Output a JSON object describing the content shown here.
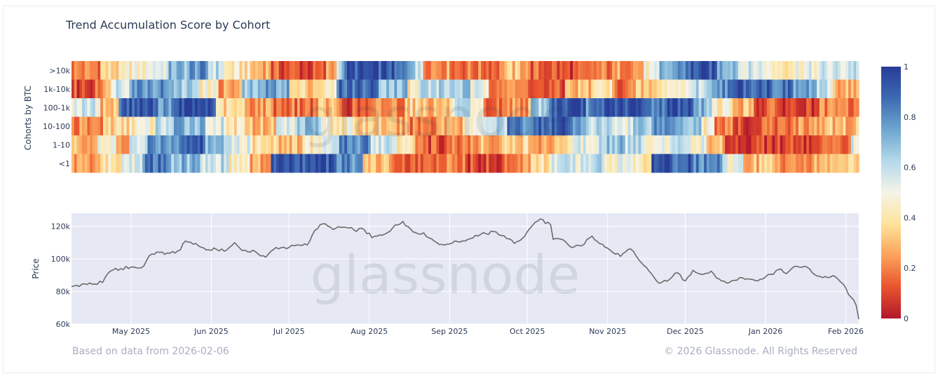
{
  "chart_data": [
    {
      "type": "heatmap",
      "title": "Trend Accumulation Score by Cohort",
      "ylabel": "Cohorts by BTC",
      "rows": [
        ">10k",
        "1k-10k",
        "100-1k",
        "10-100",
        "1-10",
        "<1"
      ],
      "colorbar": {
        "range": [
          0,
          1
        ],
        "ticks": [
          "1",
          "0.8",
          "0.6",
          "0.4",
          "0.2",
          "0"
        ]
      },
      "colorscale": [
        "#b2182b",
        "#e9542d",
        "#fca25a",
        "#fee39a",
        "#f5f4e9",
        "#b4d9ea",
        "#6ea6d0",
        "#3d6ab2",
        "#283c98"
      ],
      "start_date": "2025-04-08",
      "end_date": "2026-02-06",
      "segments": {
        ">10k": [
          [
            0.2,
            12
          ],
          [
            0.35,
            10
          ],
          [
            0.45,
            8
          ],
          [
            0.55,
            8
          ],
          [
            0.7,
            8
          ],
          [
            0.78,
            7
          ],
          [
            0.6,
            6
          ],
          [
            0.4,
            10
          ],
          [
            0.3,
            8
          ],
          [
            0.12,
            12
          ],
          [
            0.1,
            10
          ],
          [
            0.25,
            4
          ],
          [
            0.65,
            3
          ],
          [
            0.92,
            20
          ],
          [
            0.8,
            8
          ],
          [
            0.55,
            3
          ],
          [
            0.25,
            12
          ],
          [
            0.18,
            20
          ],
          [
            0.3,
            10
          ],
          [
            0.14,
            12
          ],
          [
            0.1,
            14
          ],
          [
            0.18,
            10
          ],
          [
            0.25,
            10
          ],
          [
            0.45,
            6
          ],
          [
            0.7,
            6
          ],
          [
            0.82,
            6
          ],
          [
            0.92,
            10
          ],
          [
            0.75,
            8
          ],
          [
            0.55,
            12
          ],
          [
            0.45,
            12
          ],
          [
            0.5,
            10
          ],
          [
            0.55,
            10
          ],
          [
            0.62,
            6
          ],
          [
            0.72,
            4
          ]
        ],
        "1k-10k": [
          [
            0.1,
            8
          ],
          [
            0.25,
            5
          ],
          [
            0.6,
            6
          ],
          [
            0.8,
            14
          ],
          [
            0.65,
            10
          ],
          [
            0.45,
            6
          ],
          [
            0.25,
            8
          ],
          [
            0.65,
            6
          ],
          [
            0.75,
            10
          ],
          [
            0.35,
            10
          ],
          [
            0.4,
            6
          ],
          [
            0.88,
            14
          ],
          [
            0.7,
            10
          ],
          [
            0.4,
            4
          ],
          [
            0.62,
            12
          ],
          [
            0.65,
            6
          ],
          [
            0.5,
            6
          ],
          [
            0.25,
            8
          ],
          [
            0.18,
            8
          ],
          [
            0.1,
            10
          ],
          [
            0.3,
            10
          ],
          [
            0.4,
            6
          ],
          [
            0.18,
            8
          ],
          [
            0.3,
            8
          ],
          [
            0.45,
            10
          ],
          [
            0.6,
            8
          ],
          [
            0.82,
            8
          ],
          [
            0.92,
            12
          ],
          [
            0.85,
            8
          ],
          [
            0.75,
            8
          ],
          [
            0.55,
            5
          ],
          [
            0.3,
            8
          ],
          [
            0.25,
            4
          ]
        ],
        "100-1k": [
          [
            0.55,
            10
          ],
          [
            0.3,
            6
          ],
          [
            0.92,
            12
          ],
          [
            0.8,
            8
          ],
          [
            0.95,
            12
          ],
          [
            0.35,
            10
          ],
          [
            0.25,
            10
          ],
          [
            0.18,
            14
          ],
          [
            0.28,
            8
          ],
          [
            0.12,
            12
          ],
          [
            0.22,
            10
          ],
          [
            0.35,
            8
          ],
          [
            0.3,
            8
          ],
          [
            0.55,
            6
          ],
          [
            0.4,
            4
          ],
          [
            0.15,
            8
          ],
          [
            0.25,
            8
          ],
          [
            0.65,
            6
          ],
          [
            0.92,
            12
          ],
          [
            0.8,
            6
          ],
          [
            0.95,
            12
          ],
          [
            0.85,
            8
          ],
          [
            0.95,
            10
          ],
          [
            0.7,
            6
          ],
          [
            0.45,
            6
          ],
          [
            0.3,
            8
          ],
          [
            0.12,
            10
          ],
          [
            0.08,
            12
          ],
          [
            0.18,
            12
          ],
          [
            0.15,
            4
          ]
        ],
        "10-100": [
          [
            0.2,
            10
          ],
          [
            0.35,
            8
          ],
          [
            0.45,
            8
          ],
          [
            0.6,
            6
          ],
          [
            0.72,
            10
          ],
          [
            0.55,
            6
          ],
          [
            0.4,
            8
          ],
          [
            0.3,
            8
          ],
          [
            0.55,
            6
          ],
          [
            0.7,
            8
          ],
          [
            0.45,
            10
          ],
          [
            0.35,
            10
          ],
          [
            0.25,
            8
          ],
          [
            0.2,
            8
          ],
          [
            0.3,
            8
          ],
          [
            0.45,
            6
          ],
          [
            0.6,
            8
          ],
          [
            0.82,
            10
          ],
          [
            0.92,
            10
          ],
          [
            0.75,
            6
          ],
          [
            0.6,
            8
          ],
          [
            0.55,
            6
          ],
          [
            0.68,
            6
          ],
          [
            0.8,
            10
          ],
          [
            0.7,
            6
          ],
          [
            0.45,
            4
          ],
          [
            0.2,
            6
          ],
          [
            0.08,
            8
          ],
          [
            0.15,
            10
          ],
          [
            0.25,
            12
          ],
          [
            0.3,
            12
          ],
          [
            0.92,
            2
          ]
        ],
        "1-10": [
          [
            0.3,
            8
          ],
          [
            0.45,
            6
          ],
          [
            0.25,
            4
          ],
          [
            0.55,
            6
          ],
          [
            0.8,
            10
          ],
          [
            0.92,
            8
          ],
          [
            0.7,
            8
          ],
          [
            0.55,
            6
          ],
          [
            0.4,
            8
          ],
          [
            0.3,
            8
          ],
          [
            0.45,
            6
          ],
          [
            0.55,
            6
          ],
          [
            0.82,
            10
          ],
          [
            0.6,
            8
          ],
          [
            0.45,
            6
          ],
          [
            0.12,
            10
          ],
          [
            0.2,
            10
          ],
          [
            0.3,
            8
          ],
          [
            0.35,
            10
          ],
          [
            0.25,
            6
          ],
          [
            0.4,
            6
          ],
          [
            0.55,
            8
          ],
          [
            0.7,
            8
          ],
          [
            0.6,
            6
          ],
          [
            0.5,
            8
          ],
          [
            0.65,
            6
          ],
          [
            0.5,
            6
          ],
          [
            0.3,
            6
          ],
          [
            0.1,
            14
          ],
          [
            0.08,
            14
          ],
          [
            0.12,
            12
          ],
          [
            0.55,
            4
          ]
        ],
        "<1": [
          [
            0.25,
            8
          ],
          [
            0.4,
            6
          ],
          [
            0.55,
            6
          ],
          [
            0.85,
            8
          ],
          [
            0.7,
            8
          ],
          [
            0.6,
            8
          ],
          [
            0.45,
            6
          ],
          [
            0.25,
            6
          ],
          [
            0.92,
            18
          ],
          [
            0.8,
            8
          ],
          [
            0.3,
            8
          ],
          [
            0.12,
            12
          ],
          [
            0.18,
            10
          ],
          [
            0.1,
            10
          ],
          [
            0.2,
            8
          ],
          [
            0.4,
            6
          ],
          [
            0.55,
            8
          ],
          [
            0.62,
            6
          ],
          [
            0.5,
            8
          ],
          [
            0.45,
            6
          ],
          [
            0.9,
            12
          ],
          [
            0.82,
            8
          ],
          [
            0.5,
            6
          ],
          [
            0.3,
            10
          ],
          [
            0.25,
            12
          ],
          [
            0.32,
            12
          ],
          [
            0.45,
            4
          ]
        ]
      },
      "watermark": "glassnode"
    },
    {
      "type": "line",
      "ylabel": "Price",
      "ylim": [
        60000,
        128000
      ],
      "yticks": [
        60000,
        80000,
        100000,
        120000
      ],
      "ytick_labels": [
        "60k",
        "80k",
        "100k",
        "120k"
      ],
      "xticks": [
        "2025-05-01",
        "2025-06-01",
        "2025-07-01",
        "2025-08-01",
        "2025-09-01",
        "2025-10-01",
        "2025-11-01",
        "2025-12-01",
        "2026-01-01",
        "2026-02-01"
      ],
      "xtick_labels": [
        "May 2025",
        "Jun 2025",
        "Jul 2025",
        "Aug 2025",
        "Sep 2025",
        "Oct 2025",
        "Nov 2025",
        "Dec 2025",
        "Jan 2026",
        "Feb 2026"
      ],
      "series": [
        {
          "color": "#6b6b6b",
          "points": [
            [
              "2025-04-08",
              83000
            ],
            [
              "2025-04-12",
              84500
            ],
            [
              "2025-04-16",
              84500
            ],
            [
              "2025-04-20",
              85500
            ],
            [
              "2025-04-23",
              92500
            ],
            [
              "2025-04-27",
              94000
            ],
            [
              "2025-05-01",
              95000
            ],
            [
              "2025-05-05",
              94500
            ],
            [
              "2025-05-09",
              103000
            ],
            [
              "2025-05-12",
              104000
            ],
            [
              "2025-05-16",
              103500
            ],
            [
              "2025-05-20",
              105500
            ],
            [
              "2025-05-22",
              111000
            ],
            [
              "2025-05-26",
              109500
            ],
            [
              "2025-05-30",
              105500
            ],
            [
              "2025-06-03",
              105800
            ],
            [
              "2025-06-07",
              105500
            ],
            [
              "2025-06-10",
              110000
            ],
            [
              "2025-06-13",
              105000
            ],
            [
              "2025-06-18",
              104500
            ],
            [
              "2025-06-22",
              101000
            ],
            [
              "2025-06-26",
              107000
            ],
            [
              "2025-07-01",
              107000
            ],
            [
              "2025-07-05",
              108500
            ],
            [
              "2025-07-08",
              108500
            ],
            [
              "2025-07-11",
              117500
            ],
            [
              "2025-07-14",
              121500
            ],
            [
              "2025-07-18",
              118000
            ],
            [
              "2025-07-22",
              119500
            ],
            [
              "2025-07-26",
              117800
            ],
            [
              "2025-07-30",
              118000
            ],
            [
              "2025-08-02",
              113000
            ],
            [
              "2025-08-06",
              114500
            ],
            [
              "2025-08-10",
              119000
            ],
            [
              "2025-08-14",
              123000
            ],
            [
              "2025-08-18",
              116500
            ],
            [
              "2025-08-22",
              116000
            ],
            [
              "2025-08-26",
              111000
            ],
            [
              "2025-08-30",
              108500
            ],
            [
              "2025-09-03",
              111000
            ],
            [
              "2025-09-07",
              111000
            ],
            [
              "2025-09-11",
              114500
            ],
            [
              "2025-09-15",
              115500
            ],
            [
              "2025-09-19",
              116500
            ],
            [
              "2025-09-23",
              112500
            ],
            [
              "2025-09-26",
              109500
            ],
            [
              "2025-09-30",
              114000
            ],
            [
              "2025-10-03",
              120500
            ],
            [
              "2025-10-06",
              124500
            ],
            [
              "2025-10-10",
              121000
            ],
            [
              "2025-10-11",
              112000
            ],
            [
              "2025-10-15",
              111500
            ],
            [
              "2025-10-18",
              107000
            ],
            [
              "2025-10-22",
              108000
            ],
            [
              "2025-10-26",
              114000
            ],
            [
              "2025-10-30",
              109000
            ],
            [
              "2025-11-03",
              104000
            ],
            [
              "2025-11-06",
              101500
            ],
            [
              "2025-11-10",
              106000
            ],
            [
              "2025-11-13",
              99500
            ],
            [
              "2025-11-17",
              92500
            ],
            [
              "2025-11-21",
              85000
            ],
            [
              "2025-11-25",
              87500
            ],
            [
              "2025-11-28",
              91500
            ],
            [
              "2025-12-01",
              86500
            ],
            [
              "2025-12-04",
              93000
            ],
            [
              "2025-12-08",
              90500
            ],
            [
              "2025-12-11",
              92500
            ],
            [
              "2025-12-15",
              86500
            ],
            [
              "2025-12-18",
              85500
            ],
            [
              "2025-12-22",
              88500
            ],
            [
              "2025-12-26",
              87500
            ],
            [
              "2025-12-30",
              87500
            ],
            [
              "2026-01-03",
              90500
            ],
            [
              "2026-01-06",
              93500
            ],
            [
              "2026-01-09",
              91000
            ],
            [
              "2026-01-13",
              95500
            ],
            [
              "2026-01-17",
              95000
            ],
            [
              "2026-01-21",
              89500
            ],
            [
              "2026-01-25",
              88500
            ],
            [
              "2026-01-28",
              89000
            ],
            [
              "2026-01-31",
              84500
            ],
            [
              "2026-02-03",
              76500
            ],
            [
              "2026-02-05",
              71500
            ],
            [
              "2026-02-06",
              63000
            ]
          ]
        }
      ],
      "watermark": "glassnode"
    }
  ],
  "footer": {
    "source_note": "Based on data from 2026-02-06",
    "copyright": "© 2026 Glassnode. All Rights Reserved"
  }
}
